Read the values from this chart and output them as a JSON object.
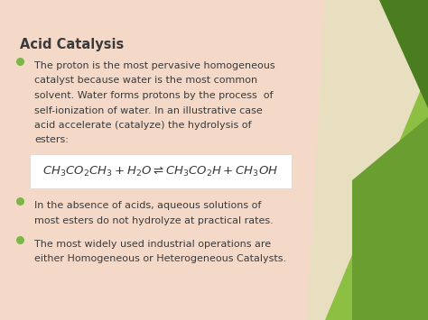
{
  "bg_color": "#f5d9c8",
  "title": "Acid Catalysis",
  "title_fontsize": 10.5,
  "bullet_color": "#7ab648",
  "bullet1_line1": "The proton is the most pervasive homogeneous",
  "bullet1_line2": "catalyst because water is the most common",
  "bullet1_line3": "solvent. Water forms protons by the process  of",
  "bullet1_line4": "self-ionization of water. In an illustrative case",
  "bullet1_line5": "acid accelerate (catalyze) the hydrolysis of",
  "bullet1_line6": "esters:",
  "equation": "$\\mathit{CH_3CO_2CH_3} + \\mathit{H_2O} \\rightleftharpoons \\mathit{CH_3CO_2H} + \\mathit{CH_3OH}$",
  "equation_box_color": "#ffffff",
  "bullet2_line1": "In the absence of acids, aqueous solutions of",
  "bullet2_line2": "most esters do not hydrolyze at practical rates.",
  "bullet3_line1": "The most widely used industrial operations are",
  "bullet3_line2": "either Homogeneous or Heterogeneous Catalysts.",
  "text_color": "#3a3a3a",
  "body_fontsize": 8.0,
  "light_green": "#8dbf42",
  "mid_green": "#6a9e30",
  "dark_green": "#4a7c20",
  "pale_green": "#b8d87a",
  "fig_width": 4.74,
  "fig_height": 3.55,
  "dpi": 100
}
